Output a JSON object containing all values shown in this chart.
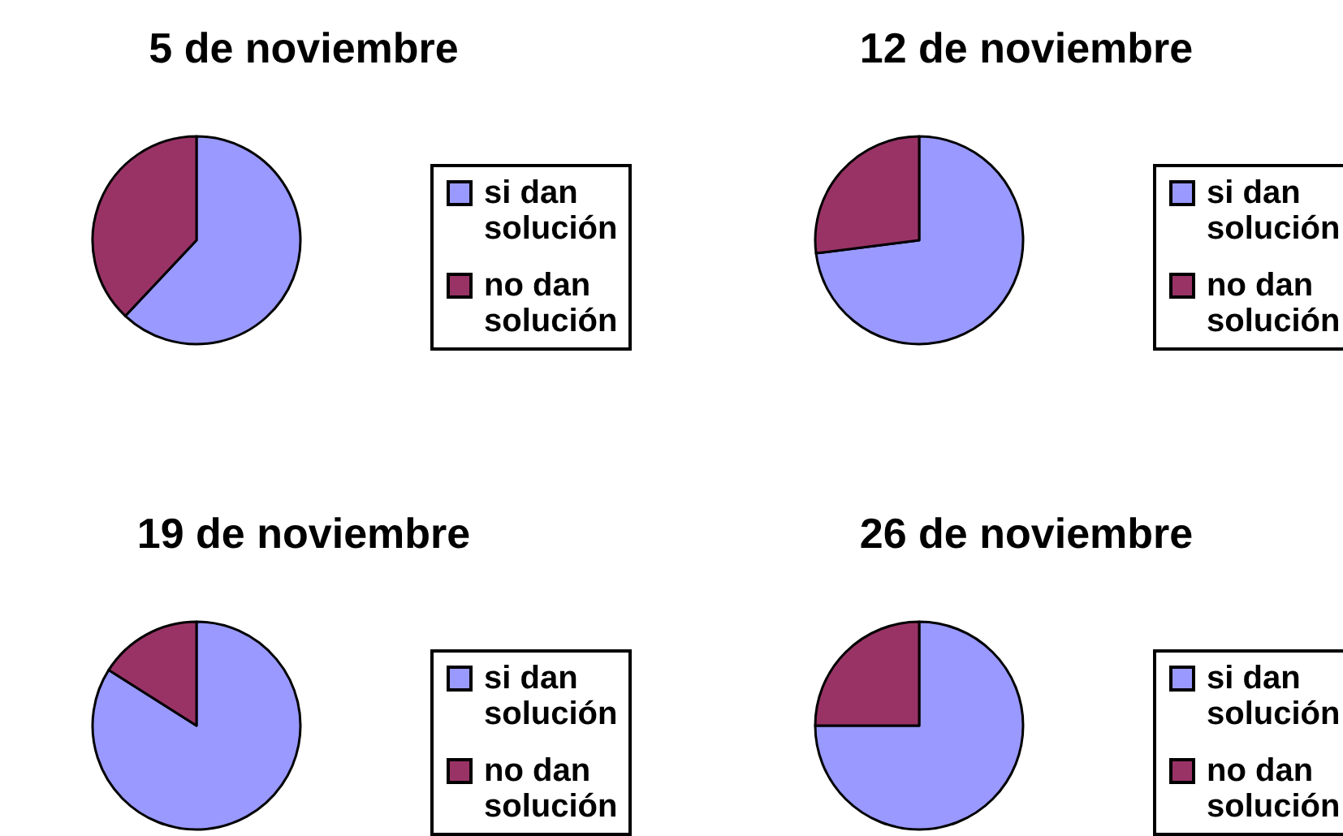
{
  "chart_data": [
    {
      "type": "pie",
      "title": "5 de noviembre",
      "categories": [
        "si dan solución",
        "no dan solución"
      ],
      "values": [
        62,
        38
      ],
      "colors": [
        "#9999ff",
        "#993366"
      ],
      "legend": "right"
    },
    {
      "type": "pie",
      "title": "12 de noviembre",
      "categories": [
        "si dan solución",
        "no dan solución"
      ],
      "values": [
        73,
        27
      ],
      "colors": [
        "#9999ff",
        "#993366"
      ],
      "legend": "right"
    },
    {
      "type": "pie",
      "title": "19 de noviembre",
      "categories": [
        "si dan solución",
        "no dan solución"
      ],
      "values": [
        84,
        16
      ],
      "colors": [
        "#9999ff",
        "#993366"
      ],
      "legend": "right"
    },
    {
      "type": "pie",
      "title": "26 de noviembre",
      "categories": [
        "si dan solución",
        "no dan solución"
      ],
      "values": [
        75,
        25
      ],
      "colors": [
        "#9999ff",
        "#993366"
      ],
      "legend": "right"
    }
  ]
}
